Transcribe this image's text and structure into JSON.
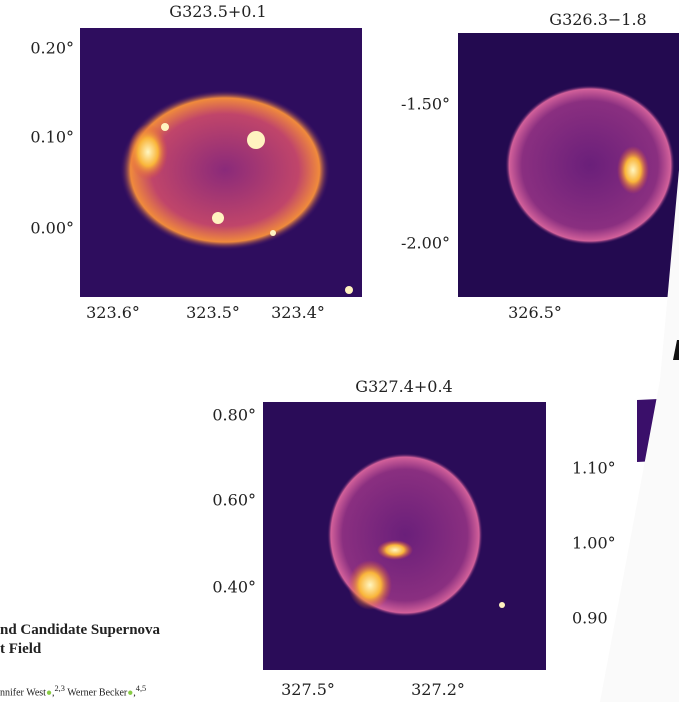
{
  "panels": [
    {
      "title": "G323.5+0.1",
      "yticks": [
        "0.20°",
        "0.10°",
        "0.00°"
      ],
      "xticks": [
        "323.6°",
        "323.5°",
        "323.4°"
      ]
    },
    {
      "title": "G326.3−1.8",
      "yticks": [
        "-1.50°",
        "-2.00°"
      ],
      "xticks": [
        "326.5°"
      ]
    },
    {
      "title": "G327.4+0.4",
      "yticks": [
        "0.80°",
        "0.60°",
        "0.40°"
      ],
      "xticks": [
        "327.5°",
        "327.2°"
      ]
    }
  ],
  "partial_panel": {
    "yticks": [
      "1.10°",
      "1.00°",
      "0.90"
    ]
  },
  "paper_snippet": {
    "title_lines": [
      "nd Candidate Supernova",
      "t Field"
    ],
    "authors": [
      {
        "name": "nnifer West",
        "affil": "2,3"
      },
      {
        "name": "Werner Becker",
        "affil": "4,5"
      }
    ]
  }
}
